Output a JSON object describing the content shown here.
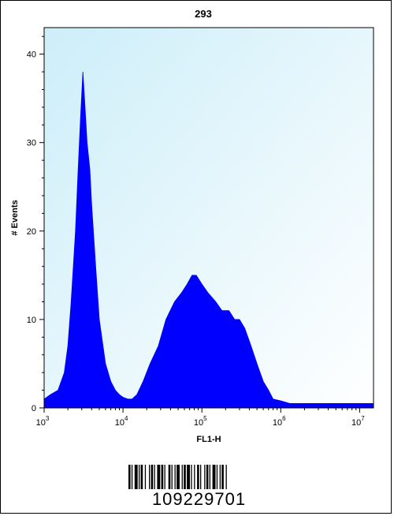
{
  "chart_data": {
    "type": "area",
    "title": "293",
    "xlabel": "FL1-H",
    "ylabel": "# Events",
    "x_scale": "log",
    "xlim": [
      1000,
      15000000
    ],
    "ylim": [
      0,
      43
    ],
    "x_ticks": [
      {
        "base": "10",
        "exp": "3",
        "value": 1000
      },
      {
        "base": "10",
        "exp": "4",
        "value": 10000
      },
      {
        "base": "10",
        "exp": "5",
        "value": 100000
      },
      {
        "base": "10",
        "exp": "6",
        "value": 1000000
      },
      {
        "base": "10",
        "exp": "7",
        "value": 10000000
      }
    ],
    "y_ticks": [
      "0",
      "10",
      "20",
      "30",
      "40"
    ],
    "y_tick_values": [
      0,
      10,
      20,
      30,
      40
    ],
    "series": [
      {
        "fill_color": "#0000ff",
        "x": [
          1000,
          1200,
          1500,
          1800,
          2000,
          2200,
          2500,
          2700,
          2900,
          3100,
          3300,
          3500,
          3800,
          4000,
          4500,
          5000,
          6000,
          7000,
          8000,
          9000,
          10000,
          11500,
          13000,
          15000,
          18000,
          22000,
          28000,
          35000,
          45000,
          55000,
          65000,
          75000,
          85000,
          100000,
          120000,
          150000,
          180000,
          220000,
          260000,
          300000,
          350000,
          420000,
          500000,
          600000,
          700000,
          800000,
          1000000,
          1300000,
          2000000,
          3000000,
          5000000,
          10000000,
          15000000
        ],
        "y": [
          1,
          1.5,
          2,
          4,
          7,
          12,
          20,
          27,
          33,
          38,
          34,
          30,
          27,
          23,
          16,
          10,
          5,
          3,
          2,
          1.5,
          1.2,
          1,
          1,
          1.5,
          3,
          5,
          7,
          10,
          12,
          13,
          14,
          15,
          15,
          14,
          13,
          12,
          11,
          11,
          10,
          10,
          9,
          7,
          5,
          3,
          2,
          1,
          0.8,
          0.5,
          0.5,
          0.5,
          0.5,
          0.5,
          0.5
        ]
      }
    ],
    "plot_background": "#d7f0fb",
    "grid": false
  },
  "barcode": {
    "number": "109229701"
  }
}
